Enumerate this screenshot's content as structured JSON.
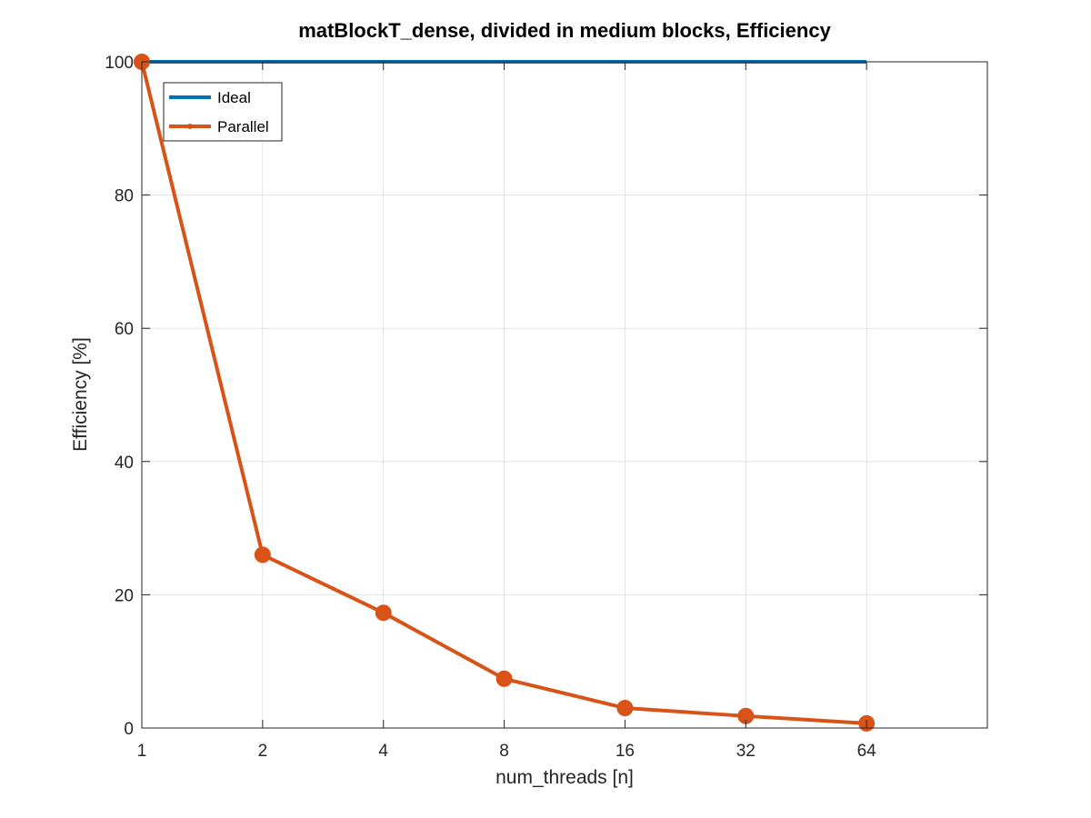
{
  "chart_data": {
    "type": "line",
    "title": "matBlockT_dense, divided in medium blocks, Efficiency",
    "xlabel": "num_threads [n]",
    "ylabel": "Efficiency [%]",
    "x_scale": "log2",
    "x": [
      1,
      2,
      4,
      8,
      16,
      32,
      64
    ],
    "x_tick_labels": [
      "1",
      "2",
      "4",
      "8",
      "16",
      "32",
      "64"
    ],
    "y_tick_labels": [
      "0",
      "20",
      "40",
      "60",
      "80",
      "100"
    ],
    "xlim": [
      1,
      128
    ],
    "ylim": [
      0,
      100
    ],
    "grid": true,
    "legend_location": "top-left",
    "series": [
      {
        "name": "Ideal",
        "color": "#0072BD",
        "marker": "none",
        "values": [
          100,
          100,
          100,
          100,
          100,
          100,
          100
        ]
      },
      {
        "name": "Parallel",
        "color": "#D95319",
        "marker": "circle",
        "values": [
          100,
          26.0,
          17.3,
          7.4,
          3.0,
          1.8,
          0.7
        ]
      }
    ]
  }
}
